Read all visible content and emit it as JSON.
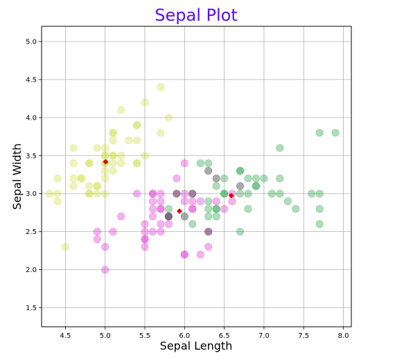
{
  "chart_data": {
    "type": "scatter",
    "title": "Sepal Plot",
    "xlabel": "Sepal Length",
    "ylabel": "Sepal Width",
    "xlim": [
      4.2,
      8.1
    ],
    "ylim": [
      1.25,
      5.2
    ],
    "xticks": [
      4.5,
      5.0,
      5.5,
      6.0,
      6.5,
      7.0,
      7.5,
      8.0
    ],
    "yticks": [
      1.5,
      2.0,
      2.5,
      3.0,
      3.5,
      4.0,
      4.5,
      5.0
    ],
    "xtick_labels": [
      "4.5",
      "5.0",
      "5.5",
      "6.0",
      "6.5",
      "7.0",
      "7.5",
      "8.0"
    ],
    "ytick_labels": [
      "1.5",
      "2.0",
      "2.5",
      "3.0",
      "3.5",
      "4.0",
      "4.5",
      "5.0"
    ],
    "grid": true,
    "series": [
      {
        "color": "#c8dc3c",
        "opacity": 0.35,
        "points": [
          [
            4.3,
            3.0
          ],
          [
            4.4,
            3.0
          ],
          [
            4.4,
            2.9
          ],
          [
            4.4,
            3.2
          ],
          [
            4.5,
            2.3
          ],
          [
            4.6,
            3.6
          ],
          [
            4.6,
            3.4
          ],
          [
            4.6,
            3.2
          ],
          [
            4.6,
            3.1
          ],
          [
            4.7,
            3.2
          ],
          [
            4.7,
            3.2
          ],
          [
            4.8,
            3.4
          ],
          [
            4.8,
            3.4
          ],
          [
            4.8,
            3.1
          ],
          [
            4.8,
            3.0
          ],
          [
            4.8,
            3.0
          ],
          [
            4.9,
            3.6
          ],
          [
            4.9,
            3.1
          ],
          [
            4.9,
            3.1
          ],
          [
            4.9,
            3.0
          ],
          [
            5.0,
            3.6
          ],
          [
            5.0,
            3.5
          ],
          [
            5.0,
            3.5
          ],
          [
            5.0,
            3.4
          ],
          [
            5.0,
            3.4
          ],
          [
            5.0,
            3.3
          ],
          [
            5.0,
            3.2
          ],
          [
            5.0,
            3.0
          ],
          [
            5.1,
            3.8
          ],
          [
            5.1,
            3.8
          ],
          [
            5.1,
            3.7
          ],
          [
            5.1,
            3.5
          ],
          [
            5.1,
            3.5
          ],
          [
            5.1,
            3.4
          ],
          [
            5.1,
            3.3
          ],
          [
            5.2,
            4.1
          ],
          [
            5.2,
            3.5
          ],
          [
            5.2,
            3.4
          ],
          [
            5.3,
            3.7
          ],
          [
            5.4,
            3.9
          ],
          [
            5.4,
            3.9
          ],
          [
            5.4,
            3.7
          ],
          [
            5.4,
            3.4
          ],
          [
            5.4,
            3.4
          ],
          [
            5.5,
            4.2
          ],
          [
            5.5,
            3.5
          ],
          [
            5.7,
            4.4
          ],
          [
            5.7,
            3.8
          ],
          [
            5.8,
            4.0
          ]
        ]
      },
      {
        "color": "#e040d8",
        "opacity": 0.4,
        "points": [
          [
            4.9,
            2.5
          ],
          [
            4.9,
            2.4
          ],
          [
            5.0,
            2.3
          ],
          [
            5.0,
            2.0
          ],
          [
            5.1,
            2.5
          ],
          [
            5.2,
            2.7
          ],
          [
            5.4,
            3.0
          ],
          [
            5.5,
            2.6
          ],
          [
            5.5,
            2.5
          ],
          [
            5.5,
            2.4
          ],
          [
            5.5,
            2.4
          ],
          [
            5.5,
            2.3
          ],
          [
            5.6,
            3.0
          ],
          [
            5.6,
            3.0
          ],
          [
            5.6,
            2.9
          ],
          [
            5.6,
            2.8
          ],
          [
            5.6,
            2.7
          ],
          [
            5.6,
            2.5
          ],
          [
            5.7,
            3.0
          ],
          [
            5.7,
            2.9
          ],
          [
            5.7,
            2.8
          ],
          [
            5.7,
            2.8
          ],
          [
            5.7,
            2.6
          ],
          [
            5.7,
            2.5
          ],
          [
            5.8,
            2.7
          ],
          [
            5.8,
            2.6
          ],
          [
            5.9,
            3.2
          ],
          [
            5.9,
            3.0
          ],
          [
            6.0,
            3.4
          ],
          [
            6.0,
            3.0
          ],
          [
            6.0,
            2.9
          ],
          [
            6.0,
            2.7
          ],
          [
            6.0,
            2.2
          ],
          [
            6.0,
            2.2
          ],
          [
            6.1,
            3.0
          ],
          [
            6.1,
            2.9
          ],
          [
            6.1,
            2.8
          ],
          [
            6.1,
            2.8
          ],
          [
            6.2,
            2.9
          ],
          [
            6.2,
            2.2
          ],
          [
            6.3,
            2.5
          ],
          [
            6.3,
            2.3
          ],
          [
            6.4,
            2.9
          ],
          [
            6.5,
            2.8
          ],
          [
            6.6,
            3.0
          ],
          [
            6.6,
            2.9
          ]
        ]
      },
      {
        "color": "#1a9e3a",
        "opacity": 0.35,
        "points": [
          [
            5.8,
            2.8
          ],
          [
            6.0,
            2.7
          ],
          [
            6.1,
            2.6
          ],
          [
            6.2,
            3.4
          ],
          [
            6.3,
            3.4
          ],
          [
            6.3,
            2.9
          ],
          [
            6.3,
            2.8
          ],
          [
            6.3,
            2.7
          ],
          [
            6.4,
            3.1
          ],
          [
            6.4,
            2.8
          ],
          [
            6.4,
            2.8
          ],
          [
            6.4,
            2.7
          ],
          [
            6.5,
            3.2
          ],
          [
            6.5,
            3.0
          ],
          [
            6.5,
            3.0
          ],
          [
            6.7,
            3.3
          ],
          [
            6.7,
            3.3
          ],
          [
            6.7,
            3.0
          ],
          [
            6.7,
            2.5
          ],
          [
            6.8,
            3.2
          ],
          [
            6.8,
            3.0
          ],
          [
            6.8,
            2.8
          ],
          [
            6.9,
            3.2
          ],
          [
            6.9,
            3.1
          ],
          [
            6.9,
            3.1
          ],
          [
            7.0,
            3.2
          ],
          [
            7.1,
            3.0
          ],
          [
            7.2,
            3.6
          ],
          [
            7.2,
            3.2
          ],
          [
            7.2,
            3.0
          ],
          [
            7.3,
            2.9
          ],
          [
            7.4,
            2.8
          ],
          [
            7.6,
            3.0
          ],
          [
            7.7,
            3.8
          ],
          [
            7.7,
            3.0
          ],
          [
            7.7,
            2.8
          ],
          [
            7.7,
            2.6
          ],
          [
            7.9,
            3.8
          ]
        ]
      },
      {
        "color": "#555555",
        "opacity": 0.5,
        "points": [
          [
            5.8,
            2.7
          ],
          [
            5.8,
            2.7
          ],
          [
            5.9,
            3.0
          ],
          [
            6.1,
            3.0
          ],
          [
            6.3,
            3.3
          ],
          [
            6.3,
            2.5
          ],
          [
            6.4,
            3.2
          ],
          [
            6.7,
            3.1
          ]
        ]
      }
    ],
    "centroids": [
      {
        "color": "#e00000",
        "x": 5.006,
        "y": 3.418
      },
      {
        "color": "#e00000",
        "x": 5.936,
        "y": 2.77
      },
      {
        "color": "#e00000",
        "x": 6.588,
        "y": 2.974
      }
    ]
  }
}
